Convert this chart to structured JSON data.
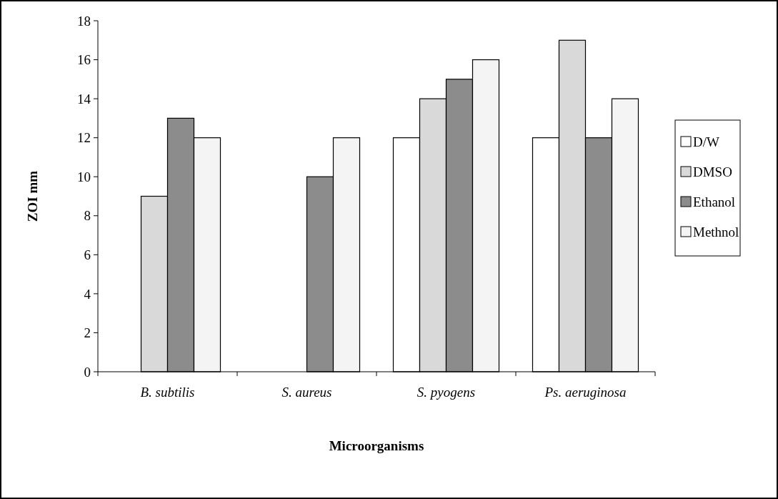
{
  "chart_data": {
    "type": "bar",
    "xlabel": "Microorganisms",
    "ylabel": "ZOI mm",
    "categories": [
      "B. subtilis",
      "S. aureus",
      "S. pyogens",
      "Ps. aeruginosa"
    ],
    "series": [
      {
        "name": "D/W",
        "color": "#ffffff",
        "values": [
          0,
          0,
          12,
          12
        ]
      },
      {
        "name": "DMSO",
        "color": "#d9d9d9",
        "values": [
          9,
          0,
          14,
          17
        ]
      },
      {
        "name": "Ethanol",
        "color": "#8c8c8c",
        "values": [
          13,
          10,
          15,
          12
        ]
      },
      {
        "name": "Methnol",
        "color": "#f4f4f4",
        "values": [
          12,
          12,
          16,
          14
        ]
      }
    ],
    "ylim": [
      0,
      18
    ],
    "yticks": [
      0,
      2,
      4,
      6,
      8,
      10,
      12,
      14,
      16,
      18
    ],
    "grid": false,
    "legend": "right"
  }
}
